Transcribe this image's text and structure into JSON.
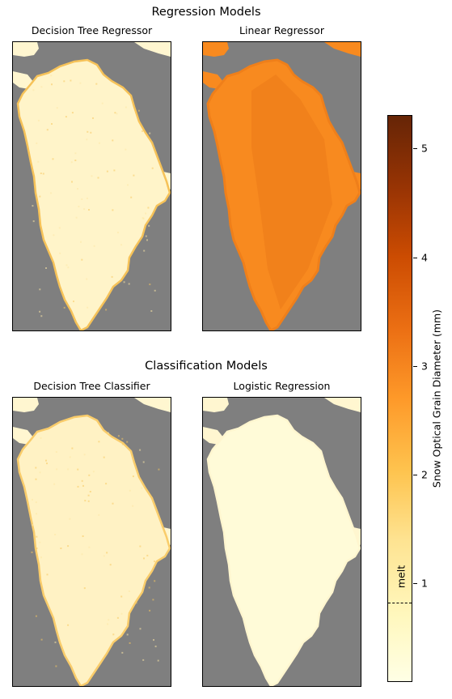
{
  "figure": {
    "regression_title": "Regression Models",
    "classification_title": "Classification Models"
  },
  "panels": [
    {
      "title": "Decision Tree Regressor",
      "group": "regression",
      "style": "tree",
      "ice_color": "#fff4c9",
      "edge_color": "#f6c258",
      "speckle": true
    },
    {
      "title": "Linear Regressor",
      "group": "regression",
      "style": "linear",
      "ice_color": "#f88a1f",
      "edge_color": "#ef7f1a",
      "speckle": false
    },
    {
      "title": "Decision Tree Classifier",
      "group": "classification",
      "style": "tree",
      "ice_color": "#fff2c4",
      "edge_color": "#f9cc6a",
      "speckle": true
    },
    {
      "title": "Logistic Regression",
      "group": "classification",
      "style": "logistic",
      "ice_color": "#fffbd8",
      "edge_color": "#fff6cf",
      "speckle": false
    }
  ],
  "colorbar": {
    "label": "Snow Optical Grain Diameter (mm)",
    "min": 0.1,
    "max": 5.3,
    "ticks": [
      "1",
      "2",
      "3",
      "4",
      "5"
    ],
    "tick_values": [
      1,
      2,
      3,
      4,
      5
    ],
    "melt_label": "melt",
    "melt_threshold": 0.62,
    "colormap": "YlOrBr"
  },
  "colors": {
    "background_land": "#7f7f7f",
    "ocean_white": "#ffffff"
  }
}
